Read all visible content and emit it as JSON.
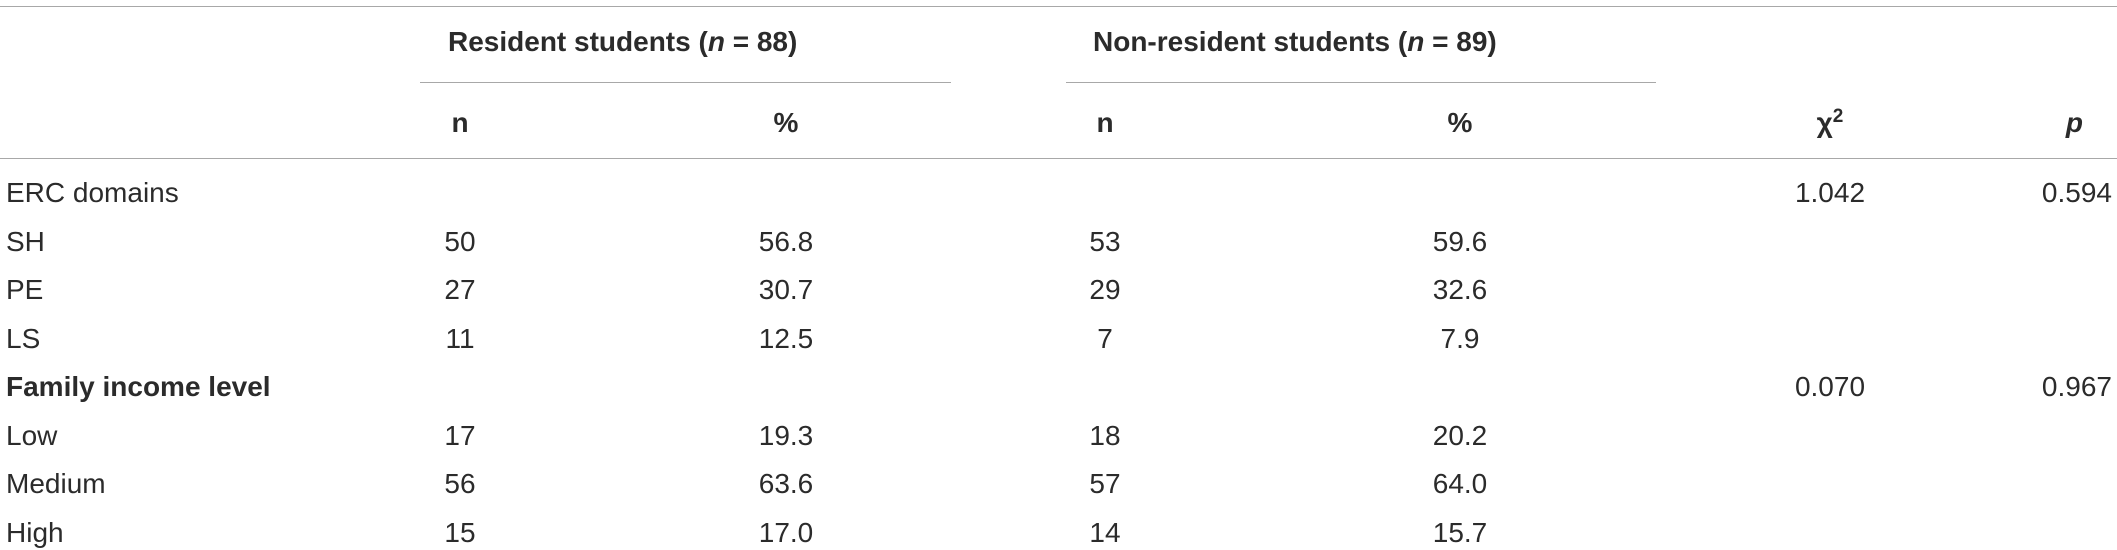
{
  "table": {
    "groups": [
      {
        "label_prefix": "Resident students (",
        "n_symbol": "n",
        "label_suffix": " = 88)"
      },
      {
        "label_prefix": "Non-resident students (",
        "n_symbol": "n",
        "label_suffix": " = 89)"
      }
    ],
    "subheaders": {
      "n1": "n",
      "pct1": "%",
      "n2": "n",
      "pct2": "%",
      "chi_base": "χ",
      "chi_sup": "2",
      "p": "p"
    },
    "rows": [
      {
        "label": "ERC domains",
        "bold": false,
        "n1": "",
        "pct1": "",
        "n2": "",
        "pct2": "",
        "chi": "1.042",
        "p": "0.594"
      },
      {
        "label": "SH",
        "bold": false,
        "n1": "50",
        "pct1": "56.8",
        "n2": "53",
        "pct2": "59.6",
        "chi": "",
        "p": ""
      },
      {
        "label": "PE",
        "bold": false,
        "n1": "27",
        "pct1": "30.7",
        "n2": "29",
        "pct2": "32.6",
        "chi": "",
        "p": ""
      },
      {
        "label": "LS",
        "bold": false,
        "n1": "11",
        "pct1": "12.5",
        "n2": "7",
        "pct2": "7.9",
        "chi": "",
        "p": ""
      },
      {
        "label": "Family income level",
        "bold": true,
        "n1": "",
        "pct1": "",
        "n2": "",
        "pct2": "",
        "chi": "0.070",
        "p": "0.967"
      },
      {
        "label": "Low",
        "bold": false,
        "n1": "17",
        "pct1": "19.3",
        "n2": "18",
        "pct2": "20.2",
        "chi": "",
        "p": ""
      },
      {
        "label": "Medium",
        "bold": false,
        "n1": "56",
        "pct1": "63.6",
        "n2": "57",
        "pct2": "64.0",
        "chi": "",
        "p": ""
      },
      {
        "label": "High",
        "bold": false,
        "n1": "15",
        "pct1": "17.0",
        "n2": "14",
        "pct2": "15.7",
        "chi": "",
        "p": ""
      }
    ]
  }
}
